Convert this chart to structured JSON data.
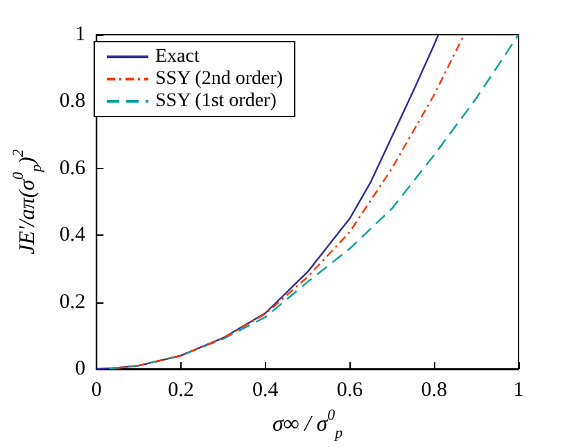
{
  "chart_data": {
    "type": "line",
    "xlabel": "σ∞ / σ$^{0}$$_{p}$",
    "ylabel": "JE'/aπ(σ$^{0}$$_{p}$)$^{2}$",
    "xlim": [
      0,
      1
    ],
    "ylim": [
      0,
      1
    ],
    "xticks": [
      0,
      0.2,
      0.4,
      0.6,
      0.8,
      1
    ],
    "yticks": [
      0,
      0.2,
      0.4,
      0.6,
      0.8,
      1
    ],
    "grid": false,
    "legend": "top left",
    "marker": "none",
    "series": [
      {
        "name": "Exact",
        "color": "#2a2a9a",
        "line_style": "solid",
        "x": [
          0,
          0.05,
          0.1,
          0.2,
          0.3,
          0.4,
          0.5,
          0.6,
          0.65,
          0.7,
          0.75,
          0.8,
          0.81
        ],
        "values": [
          0,
          0.003,
          0.01,
          0.04,
          0.093,
          0.167,
          0.29,
          0.45,
          0.56,
          0.695,
          0.83,
          0.97,
          1
        ]
      },
      {
        "name": "SSY (2nd order)",
        "color": "#ff3300",
        "line_style": "dashdot",
        "x": [
          0.05,
          0.1,
          0.2,
          0.3,
          0.4,
          0.5,
          0.6,
          0.7,
          0.8,
          0.867
        ],
        "values": [
          0.003,
          0.01,
          0.04,
          0.092,
          0.165,
          0.275,
          0.41,
          0.6,
          0.82,
          0.99
        ]
      },
      {
        "name": "SSY (1st order)",
        "color": "#00a0a0",
        "line_style": "dashed",
        "x": [
          0.03,
          0.1,
          0.2,
          0.3,
          0.4,
          0.5,
          0.6,
          0.7,
          0.8,
          0.9,
          1
        ],
        "values": [
          0.001,
          0.01,
          0.04,
          0.09,
          0.155,
          0.26,
          0.36,
          0.48,
          0.64,
          0.81,
          1
        ]
      }
    ]
  }
}
